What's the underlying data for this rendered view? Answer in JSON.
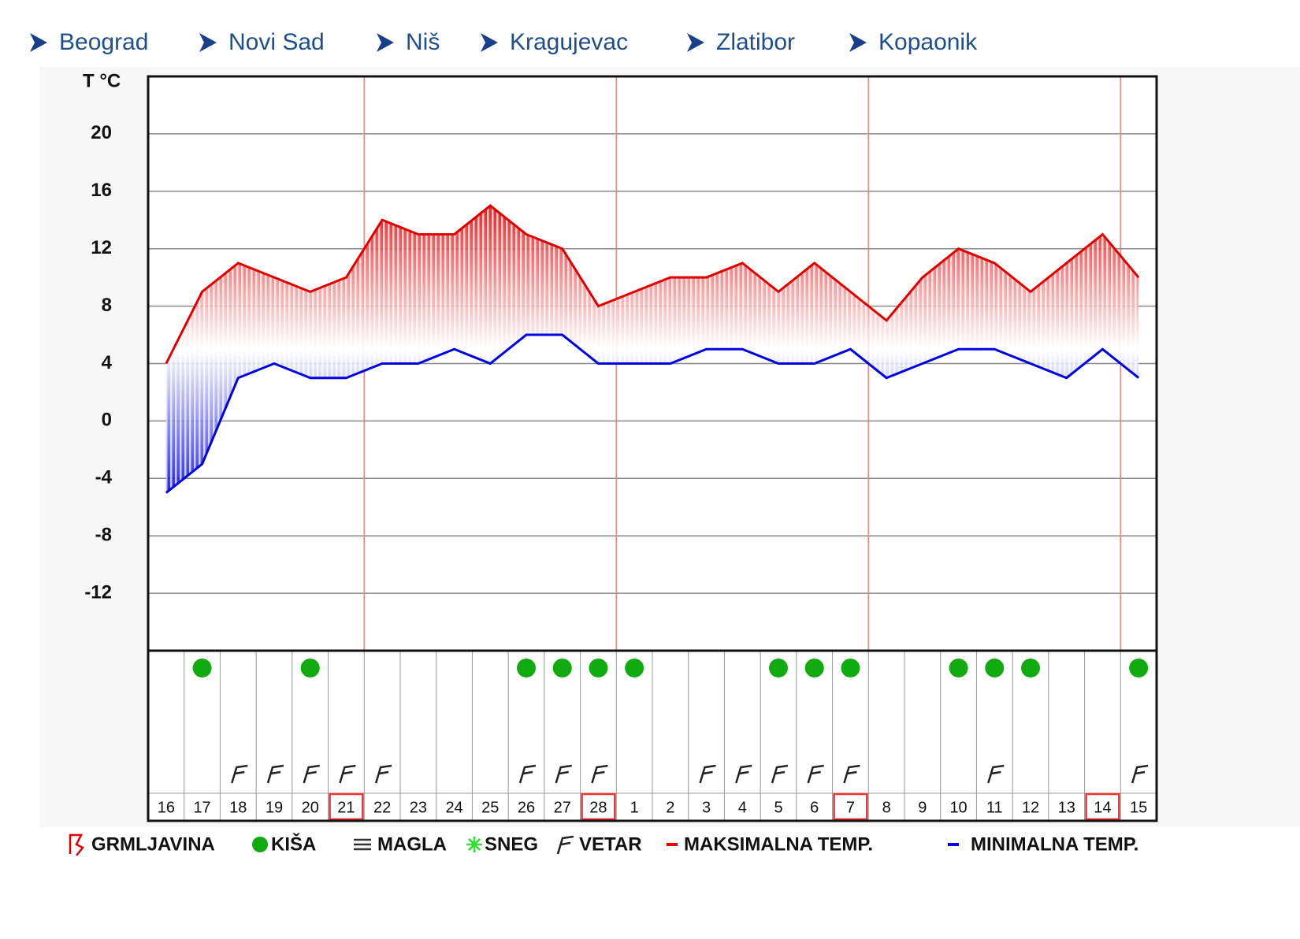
{
  "nav": [
    "Beograd",
    "Novi Sad",
    "Niš",
    "Kragujevac",
    "Zlatibor",
    "Kopaonik"
  ],
  "chart_data": {
    "type": "line",
    "ylabel": "T °C",
    "categories": [
      "16",
      "17",
      "18",
      "19",
      "20",
      "21",
      "22",
      "23",
      "24",
      "25",
      "26",
      "27",
      "28",
      "1",
      "2",
      "3",
      "4",
      "5",
      "6",
      "7",
      "8",
      "9",
      "10",
      "11",
      "12",
      "13",
      "14",
      "15"
    ],
    "series": [
      {
        "name": "MAKSIMALNA TEMP.",
        "color": "#e00000",
        "values": [
          4,
          9,
          11,
          10,
          9,
          10,
          14,
          13,
          13,
          15,
          13,
          12,
          8,
          9,
          10,
          10,
          11,
          9,
          11,
          9,
          7,
          10,
          12,
          11,
          9,
          11,
          13,
          10
        ]
      },
      {
        "name": "MINIMALNA TEMP.",
        "color": "#0000e0",
        "values": [
          -5,
          -3,
          3,
          4,
          3,
          3,
          4,
          4,
          5,
          4,
          6,
          6,
          4,
          4,
          4,
          5,
          5,
          4,
          4,
          5,
          3,
          4,
          5,
          5,
          4,
          3,
          5,
          3
        ]
      }
    ],
    "ylim": [
      -16,
      24
    ],
    "yticks": [
      -12,
      -8,
      -4,
      0,
      4,
      8,
      12,
      16,
      20
    ],
    "grid": true,
    "highlight": [
      "21",
      "28",
      "7",
      "14"
    ],
    "rain": [
      false,
      true,
      false,
      false,
      true,
      false,
      false,
      false,
      false,
      false,
      true,
      true,
      true,
      true,
      false,
      false,
      false,
      true,
      true,
      true,
      false,
      false,
      true,
      true,
      true,
      false,
      false,
      true
    ],
    "wind": [
      false,
      false,
      true,
      true,
      true,
      true,
      true,
      false,
      false,
      false,
      true,
      true,
      true,
      false,
      false,
      true,
      true,
      true,
      true,
      true,
      false,
      false,
      false,
      true,
      false,
      false,
      false,
      true
    ],
    "symbols": [
      {
        "name": "GRMLJAVINA",
        "color": "#e00000"
      },
      {
        "name": "KIŠA",
        "color": "#11aa11"
      },
      {
        "name": "MAGLA",
        "color": "#333333"
      },
      {
        "name": "SNEG",
        "color": "#33dd33"
      },
      {
        "name": "VETAR",
        "color": "#222222"
      }
    ]
  }
}
